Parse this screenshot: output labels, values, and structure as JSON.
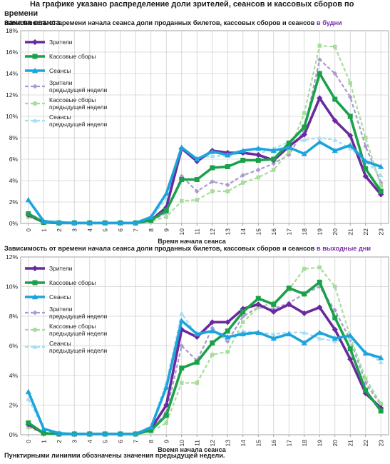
{
  "heading_line1": "На графике указано распределение доли зрителей, сеансов и кассовых сборов по времени",
  "heading_line2": "начала сеанса.",
  "footnote": "Пунктирными линиями обозначены значения предыдущей недели.",
  "colors": {
    "viewers": "#6a2a9e",
    "box_office": "#1aa14a",
    "sessions": "#1ea4dc",
    "viewers_prev": "#a99ad0",
    "box_office_prev": "#a8dc9c",
    "sessions_prev": "#a6ddf2",
    "highlight": "#7a2ca8"
  },
  "chart_data": [
    {
      "type": "line",
      "title": "Зависимость от времени начала сеанса доли проданных билетов, кассовых сборов и сеансов",
      "title_highlight": "в будни",
      "xlabel": "Время начала сеанса",
      "ylabel": "",
      "x": [
        0,
        1,
        2,
        3,
        4,
        5,
        6,
        7,
        8,
        9,
        10,
        11,
        12,
        13,
        14,
        15,
        16,
        17,
        18,
        19,
        20,
        21,
        22,
        23
      ],
      "ylim": [
        0,
        18
      ],
      "yticks": [
        "0%",
        "2%",
        "4%",
        "6%",
        "8%",
        "10%",
        "12%",
        "14%",
        "16%",
        "18%"
      ],
      "grid": true,
      "legend_position": "top-left",
      "series": [
        {
          "name": "Зрители",
          "key": "viewers",
          "dashed": false,
          "values": [
            0.8,
            0.1,
            0.05,
            0.05,
            0.05,
            0.05,
            0.05,
            0.05,
            0.3,
            1.5,
            7.0,
            5.8,
            6.8,
            6.6,
            6.6,
            6.4,
            5.9,
            7.2,
            8.3,
            11.7,
            9.6,
            8.2,
            4.4,
            2.7
          ]
        },
        {
          "name": "Кассовые сборы",
          "key": "box_office",
          "dashed": false,
          "values": [
            0.9,
            0.1,
            0.05,
            0.05,
            0.05,
            0.05,
            0.05,
            0.05,
            0.3,
            1.2,
            4.1,
            4.1,
            5.2,
            5.3,
            5.9,
            5.9,
            6.0,
            7.5,
            9.0,
            14.0,
            11.6,
            10.0,
            5.1,
            3.0
          ]
        },
        {
          "name": "Сеансы",
          "key": "sessions",
          "dashed": false,
          "values": [
            2.2,
            0.2,
            0.1,
            0.05,
            0.05,
            0.05,
            0.05,
            0.05,
            0.6,
            2.8,
            7.1,
            6.0,
            6.7,
            6.4,
            6.8,
            7.0,
            6.8,
            7.1,
            6.5,
            7.6,
            6.8,
            7.3,
            5.8,
            5.3
          ]
        },
        {
          "name": "Зрители предыдущей недели",
          "key": "viewers_prev",
          "dashed": true,
          "values": [
            0.7,
            0.1,
            0.05,
            0.05,
            0.05,
            0.05,
            0.05,
            0.05,
            0.2,
            1.0,
            4.4,
            3.0,
            3.9,
            3.6,
            4.5,
            5.0,
            5.6,
            6.4,
            8.8,
            15.3,
            14.0,
            11.8,
            7.2,
            3.8
          ]
        },
        {
          "name": "Кассовые сборы предыдущей недели",
          "key": "box_office_prev",
          "dashed": true,
          "values": [
            0.6,
            0.1,
            0.05,
            0.05,
            0.05,
            0.05,
            0.05,
            0.05,
            0.2,
            0.6,
            2.1,
            2.2,
            3.0,
            3.0,
            3.8,
            4.3,
            5.0,
            6.7,
            10.3,
            16.6,
            16.5,
            13.1,
            8.0,
            3.5
          ]
        },
        {
          "name": "Сеансы предыдущей недели",
          "key": "sessions_prev",
          "dashed": true,
          "values": [
            1.0,
            0.2,
            0.1,
            0.05,
            0.05,
            0.05,
            0.05,
            0.05,
            0.5,
            2.3,
            6.9,
            6.1,
            6.3,
            6.3,
            6.6,
            6.5,
            7.0,
            7.6,
            7.8,
            8.0,
            7.8,
            7.0,
            5.8,
            4.5
          ]
        }
      ]
    },
    {
      "type": "line",
      "title": "Зависимость от времени начала сеанса доли проданных билетов, кассовых сборов и сеансов",
      "title_highlight": "в выходные дни",
      "xlabel": "Время начала сеанса",
      "ylabel": "",
      "x": [
        0,
        1,
        2,
        3,
        4,
        5,
        6,
        7,
        8,
        9,
        10,
        11,
        12,
        13,
        14,
        15,
        16,
        17,
        18,
        19,
        20,
        21,
        22,
        23
      ],
      "ylim": [
        0,
        12
      ],
      "yticks": [
        "0%",
        "2%",
        "4%",
        "6%",
        "8%",
        "10%",
        "12%"
      ],
      "grid": true,
      "legend_position": "top-left",
      "series": [
        {
          "name": "Зрители",
          "key": "viewers",
          "dashed": false,
          "values": [
            0.7,
            0.1,
            0.05,
            0.05,
            0.05,
            0.05,
            0.05,
            0.05,
            0.4,
            2.0,
            7.1,
            6.6,
            7.6,
            7.6,
            8.5,
            8.8,
            8.3,
            8.8,
            8.2,
            8.6,
            7.1,
            5.1,
            2.8,
            1.8
          ]
        },
        {
          "name": "Кассовые сборы",
          "key": "box_office",
          "dashed": false,
          "values": [
            0.8,
            0.1,
            0.05,
            0.05,
            0.05,
            0.05,
            0.05,
            0.05,
            0.3,
            1.3,
            4.5,
            4.9,
            6.2,
            7.0,
            8.3,
            9.2,
            8.8,
            9.9,
            9.5,
            10.3,
            7.9,
            5.8,
            3.0,
            1.6
          ]
        },
        {
          "name": "Сеансы",
          "key": "sessions",
          "dashed": false,
          "values": [
            2.9,
            0.4,
            0.1,
            0.05,
            0.05,
            0.05,
            0.05,
            0.05,
            0.5,
            3.2,
            7.7,
            6.8,
            7.0,
            6.6,
            6.8,
            6.9,
            6.5,
            6.8,
            6.2,
            6.9,
            6.5,
            6.7,
            5.5,
            5.2
          ]
        },
        {
          "name": "Зрители предыдущей недели",
          "key": "viewers_prev",
          "dashed": true,
          "values": [
            0.6,
            0.1,
            0.05,
            0.05,
            0.05,
            0.05,
            0.05,
            0.05,
            0.3,
            1.5,
            6.0,
            5.0,
            7.2,
            6.3,
            8.0,
            8.6,
            8.5,
            8.9,
            9.5,
            10.0,
            8.4,
            6.4,
            3.5,
            2.0
          ]
        },
        {
          "name": "Кассовые сборы предыдущей недели",
          "key": "box_office_prev",
          "dashed": true,
          "values": [
            0.5,
            0.1,
            0.05,
            0.05,
            0.05,
            0.05,
            0.05,
            0.05,
            0.2,
            0.8,
            3.5,
            3.5,
            5.4,
            5.6,
            7.6,
            8.6,
            8.9,
            9.8,
            11.2,
            11.3,
            10.0,
            6.6,
            3.8,
            2.1
          ]
        },
        {
          "name": "Сеансы предыдущей недели",
          "key": "sessions_prev",
          "dashed": true,
          "values": [
            2.4,
            0.4,
            0.1,
            0.05,
            0.05,
            0.05,
            0.05,
            0.05,
            0.6,
            3.5,
            8.2,
            6.7,
            7.0,
            6.5,
            7.0,
            6.9,
            6.8,
            6.9,
            6.9,
            6.5,
            6.3,
            6.5,
            5.6,
            4.9
          ]
        }
      ]
    }
  ]
}
